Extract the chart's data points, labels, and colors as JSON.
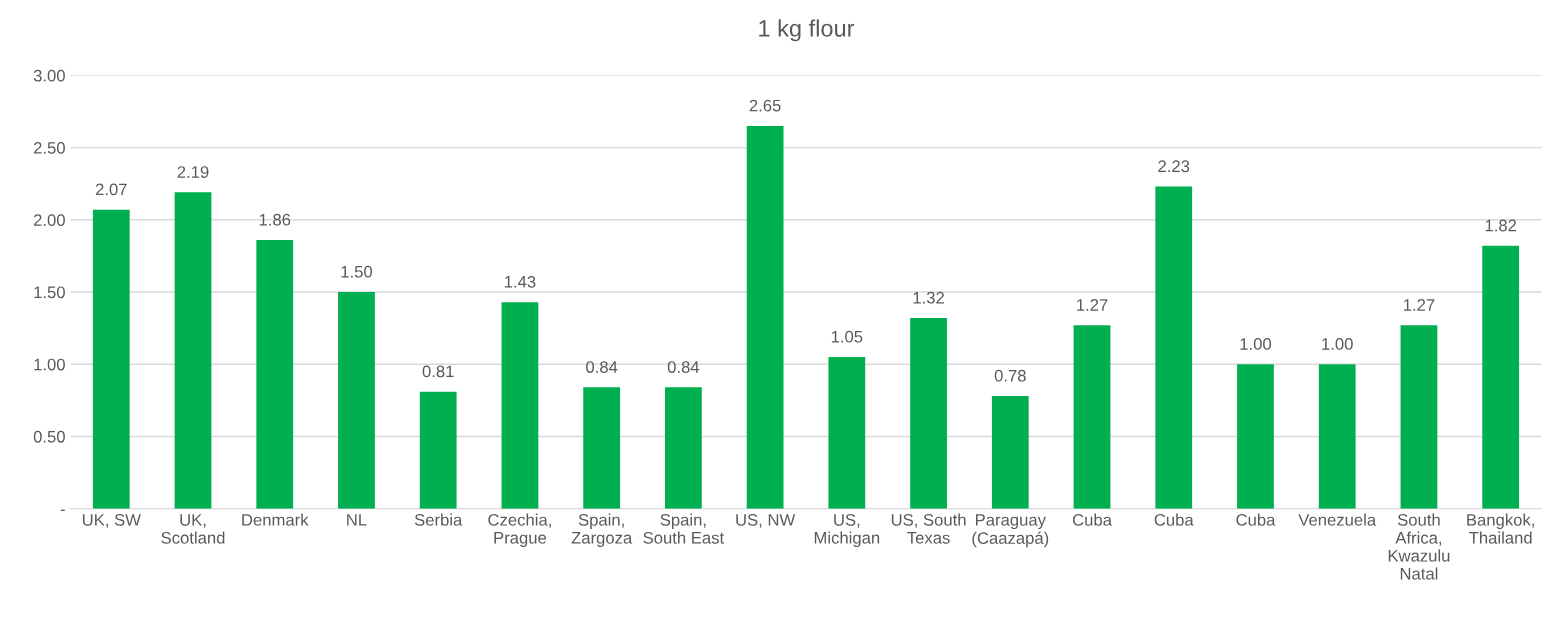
{
  "chart_data": {
    "type": "bar",
    "title": "1 kg flour",
    "categories": [
      "UK, SW",
      "UK,\nScotland",
      "Denmark",
      "NL",
      "Serbia",
      "Czechia,\nPrague",
      "Spain,\nZargoza",
      "Spain,\nSouth East",
      "US, NW",
      "US,\nMichigan",
      "US, South\nTexas",
      "Paraguay\n(Caazapá)",
      "Cuba",
      "Cuba",
      "Cuba",
      "Venezuela",
      "South\nAfrica,\nKwazulu\nNatal",
      "Bangkok,\nThailand"
    ],
    "values": [
      2.07,
      2.19,
      1.86,
      1.5,
      0.81,
      1.43,
      0.84,
      0.84,
      2.65,
      1.05,
      1.32,
      0.78,
      1.27,
      2.23,
      1.0,
      1.0,
      1.27,
      1.82
    ],
    "value_labels": [
      "2.07",
      "2.19",
      "1.86",
      "1.50",
      "0.81",
      "1.43",
      "0.84",
      "0.84",
      "2.65",
      "1.05",
      "1.32",
      "0.78",
      "1.27",
      "2.23",
      "1.00",
      "1.00",
      "1.27",
      "1.82"
    ],
    "color": "#00b050",
    "ylim": [
      0,
      3
    ],
    "yticks": [
      {
        "value": 0,
        "label": "-"
      },
      {
        "value": 0.5,
        "label": "0.50"
      },
      {
        "value": 1,
        "label": "1.00"
      },
      {
        "value": 1.5,
        "label": "1.50"
      },
      {
        "value": 2,
        "label": "2.00"
      },
      {
        "value": 2.5,
        "label": "2.50"
      },
      {
        "value": 3,
        "label": "3.00"
      }
    ],
    "grid": "y",
    "legend": false
  }
}
